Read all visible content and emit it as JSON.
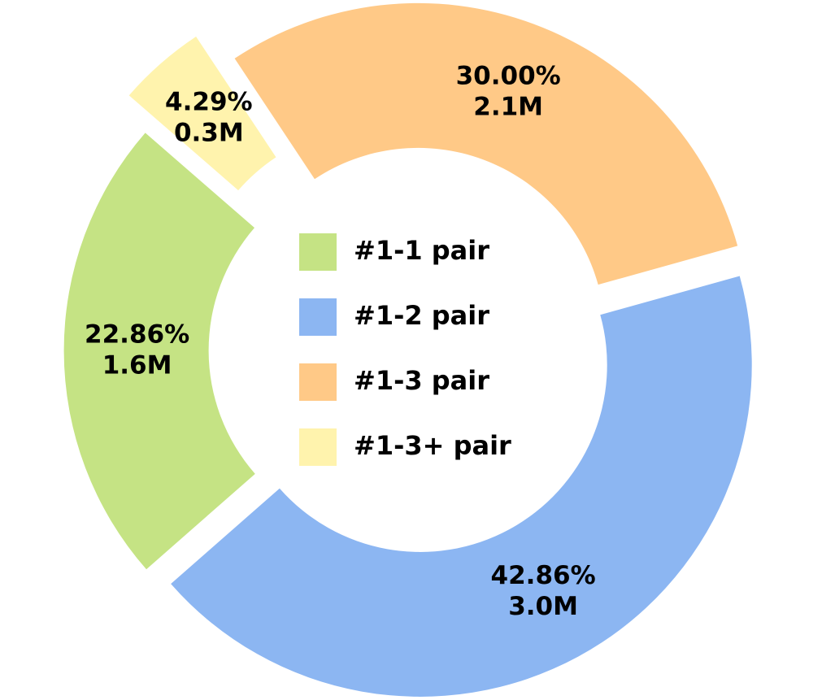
{
  "chart_data": {
    "type": "donut",
    "categories": [
      "#1-1 pair",
      "#1-2 pair",
      "#1-3 pair",
      "#1-3+ pair"
    ],
    "values": [
      22.86,
      42.86,
      30.0,
      4.29
    ],
    "value_labels": [
      "22.86%",
      "42.86%",
      "30.00%",
      "4.29%"
    ],
    "counts": [
      1600000,
      3000000,
      2100000,
      300000
    ],
    "count_labels": [
      "1.6M",
      "3.0M",
      "2.1M",
      "0.3M"
    ],
    "colors": [
      "#c5e384",
      "#8cb6f2",
      "#ffc987",
      "#fff3ad"
    ],
    "legend": "center"
  }
}
